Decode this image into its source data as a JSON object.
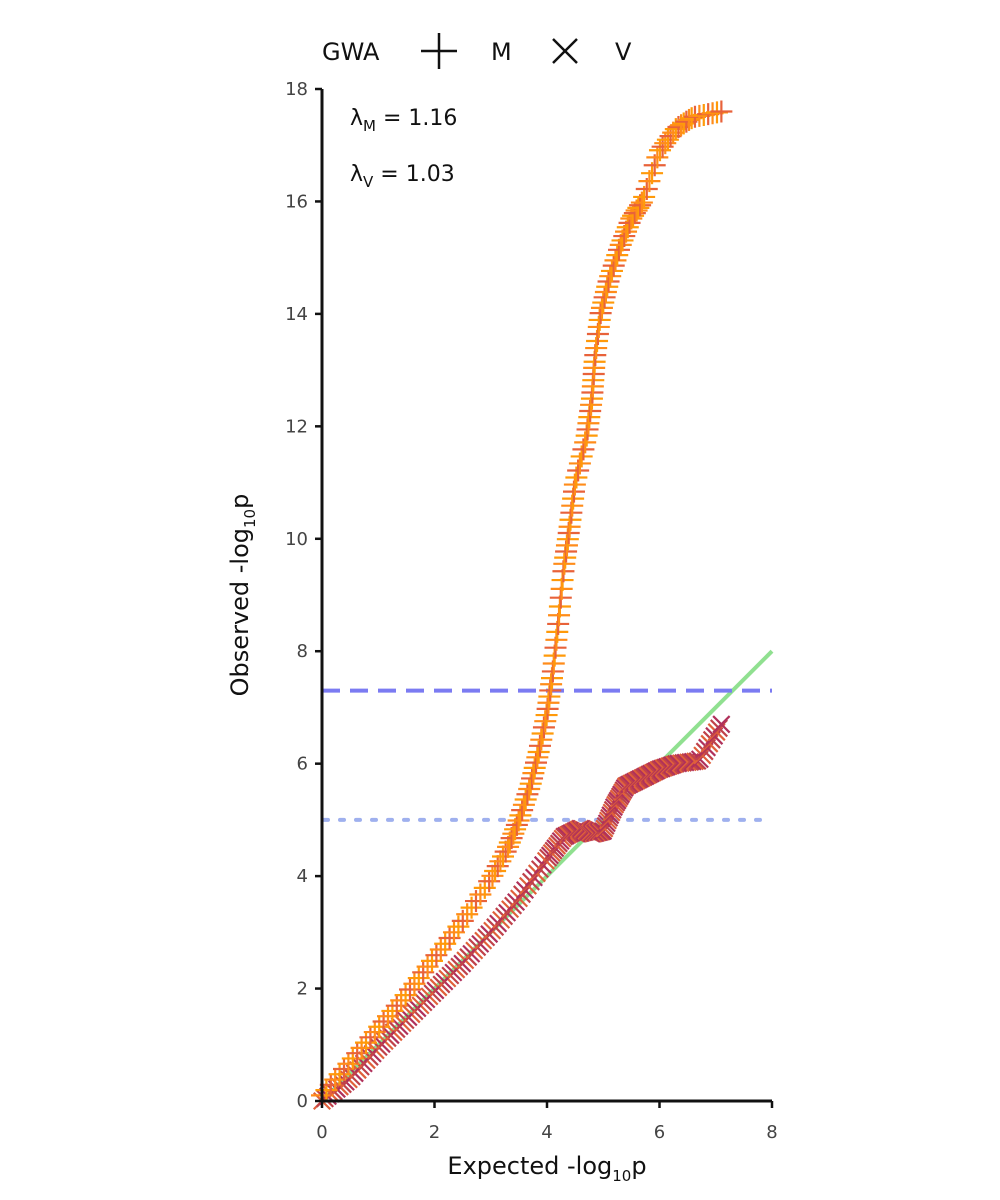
{
  "chart_data": {
    "type": "scatter",
    "title": "",
    "xlabel": {
      "prefix": "Expected -log",
      "sub": "10",
      "suffix": "p"
    },
    "ylabel": {
      "prefix": "Observed -log",
      "sub": "10",
      "suffix": "p"
    },
    "xlim": [
      0,
      8
    ],
    "ylim": [
      0,
      18
    ],
    "xticks": [
      "0",
      "2",
      "4",
      "6",
      "8"
    ],
    "yticks": [
      "0",
      "2",
      "4",
      "6",
      "8",
      "10",
      "12",
      "14",
      "16",
      "18"
    ],
    "grid": false,
    "legend": {
      "placement": "top",
      "title": "GWA",
      "entries": [
        {
          "label": "M",
          "marker": "plus-marker-icon"
        },
        {
          "label": "V",
          "marker": "x-marker-icon"
        }
      ]
    },
    "annotations": [
      {
        "symbol": "λ",
        "sub": "M",
        "text": " = 1.16"
      },
      {
        "symbol": "λ",
        "sub": "V",
        "text": " = 1.03"
      }
    ],
    "reference_lines": [
      {
        "kind": "diagonal",
        "from": [
          0,
          0
        ],
        "to": [
          8,
          8
        ],
        "color": "#90e090"
      },
      {
        "kind": "horizontal",
        "y": 7.3,
        "style": "dashed",
        "color": "#7b7bf2"
      },
      {
        "kind": "horizontal",
        "y": 5.0,
        "style": "dotted",
        "color": "#9fb0ee"
      }
    ],
    "series": [
      {
        "name": "M",
        "marker": "plus",
        "colors": [
          "#ff8c1a",
          "#ff9a0a",
          "#e8623a"
        ],
        "curve": [
          [
            0.0,
            0.1
          ],
          [
            0.5,
            0.7
          ],
          [
            1.0,
            1.3
          ],
          [
            1.5,
            1.9
          ],
          [
            2.0,
            2.55
          ],
          [
            2.5,
            3.2
          ],
          [
            3.0,
            3.95
          ],
          [
            3.3,
            4.5
          ],
          [
            3.5,
            5.0
          ],
          [
            3.7,
            5.6
          ],
          [
            3.85,
            6.2
          ],
          [
            4.0,
            6.9
          ],
          [
            4.1,
            7.6
          ],
          [
            4.2,
            8.5
          ],
          [
            4.3,
            9.5
          ],
          [
            4.4,
            10.2
          ],
          [
            4.5,
            11.0
          ],
          [
            4.7,
            11.8
          ],
          [
            4.8,
            12.5
          ],
          [
            4.85,
            13.2
          ],
          [
            4.95,
            14.0
          ],
          [
            5.1,
            14.6
          ],
          [
            5.3,
            15.2
          ],
          [
            5.5,
            15.7
          ],
          [
            5.7,
            16.0
          ],
          [
            6.0,
            16.9
          ],
          [
            6.3,
            17.3
          ],
          [
            6.6,
            17.5
          ],
          [
            7.1,
            17.6
          ]
        ]
      },
      {
        "name": "V",
        "marker": "x",
        "colors": [
          "#e0603a",
          "#c0424a",
          "#b0305a"
        ],
        "curve": [
          [
            0.0,
            0.0
          ],
          [
            0.5,
            0.4
          ],
          [
            1.0,
            0.95
          ],
          [
            1.5,
            1.45
          ],
          [
            2.0,
            1.95
          ],
          [
            2.5,
            2.45
          ],
          [
            3.0,
            3.0
          ],
          [
            3.5,
            3.6
          ],
          [
            4.0,
            4.3
          ],
          [
            4.3,
            4.7
          ],
          [
            4.6,
            4.85
          ],
          [
            4.8,
            4.75
          ],
          [
            5.0,
            4.8
          ],
          [
            5.2,
            5.25
          ],
          [
            5.4,
            5.6
          ],
          [
            5.7,
            5.75
          ],
          [
            6.0,
            5.9
          ],
          [
            6.3,
            6.0
          ],
          [
            6.7,
            6.05
          ],
          [
            7.1,
            6.7
          ]
        ]
      }
    ]
  }
}
